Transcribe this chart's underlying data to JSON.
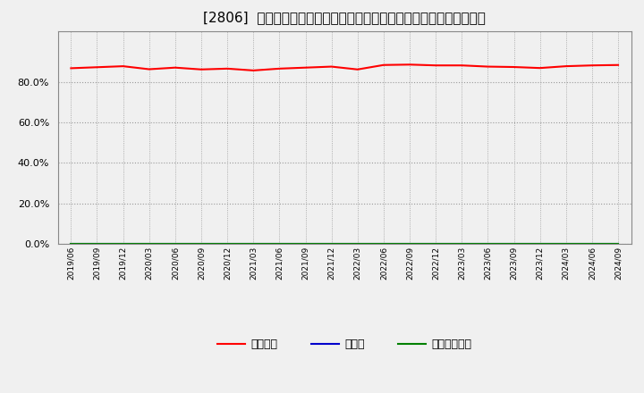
{
  "title": "[2806]  自己資本、のれん、繰延税金資産の総資産に対する比率の推移",
  "x_labels": [
    "2019/06",
    "2019/09",
    "2019/12",
    "2020/03",
    "2020/06",
    "2020/09",
    "2020/12",
    "2021/03",
    "2021/06",
    "2021/09",
    "2021/12",
    "2022/03",
    "2022/06",
    "2022/09",
    "2022/12",
    "2023/03",
    "2023/06",
    "2023/09",
    "2023/12",
    "2024/03",
    "2024/06",
    "2024/09"
  ],
  "equity_ratio": [
    0.868,
    0.873,
    0.878,
    0.863,
    0.871,
    0.862,
    0.866,
    0.857,
    0.866,
    0.871,
    0.876,
    0.862,
    0.884,
    0.886,
    0.882,
    0.882,
    0.876,
    0.874,
    0.869,
    0.878,
    0.882,
    0.884
  ],
  "goodwill_ratio": [
    0.0,
    0.0,
    0.0,
    0.0,
    0.0,
    0.0,
    0.0,
    0.0,
    0.0,
    0.0,
    0.0,
    0.0,
    0.0,
    0.0,
    0.0,
    0.0,
    0.0,
    0.0,
    0.0,
    0.0,
    0.0,
    0.0
  ],
  "deferred_tax_ratio": [
    0.0,
    0.0,
    0.0,
    0.0,
    0.0,
    0.0,
    0.0,
    0.0,
    0.0,
    0.0,
    0.0,
    0.0,
    0.0,
    0.0,
    0.0,
    0.0,
    0.0,
    0.0,
    0.0,
    0.0,
    0.0,
    0.0
  ],
  "equity_color": "#ff0000",
  "goodwill_color": "#0000cc",
  "deferred_tax_color": "#008000",
  "legend_equity": "自己資本",
  "legend_goodwill": "のれん",
  "legend_deferred": "繰延税金資産",
  "ylim": [
    0.0,
    1.05
  ],
  "yticks": [
    0.0,
    0.2,
    0.4,
    0.6,
    0.8
  ],
  "background_color": "#f0f0f0",
  "plot_bg_color": "#f0f0f0",
  "grid_color": "#999999",
  "title_fontsize": 11,
  "line_width": 1.5
}
